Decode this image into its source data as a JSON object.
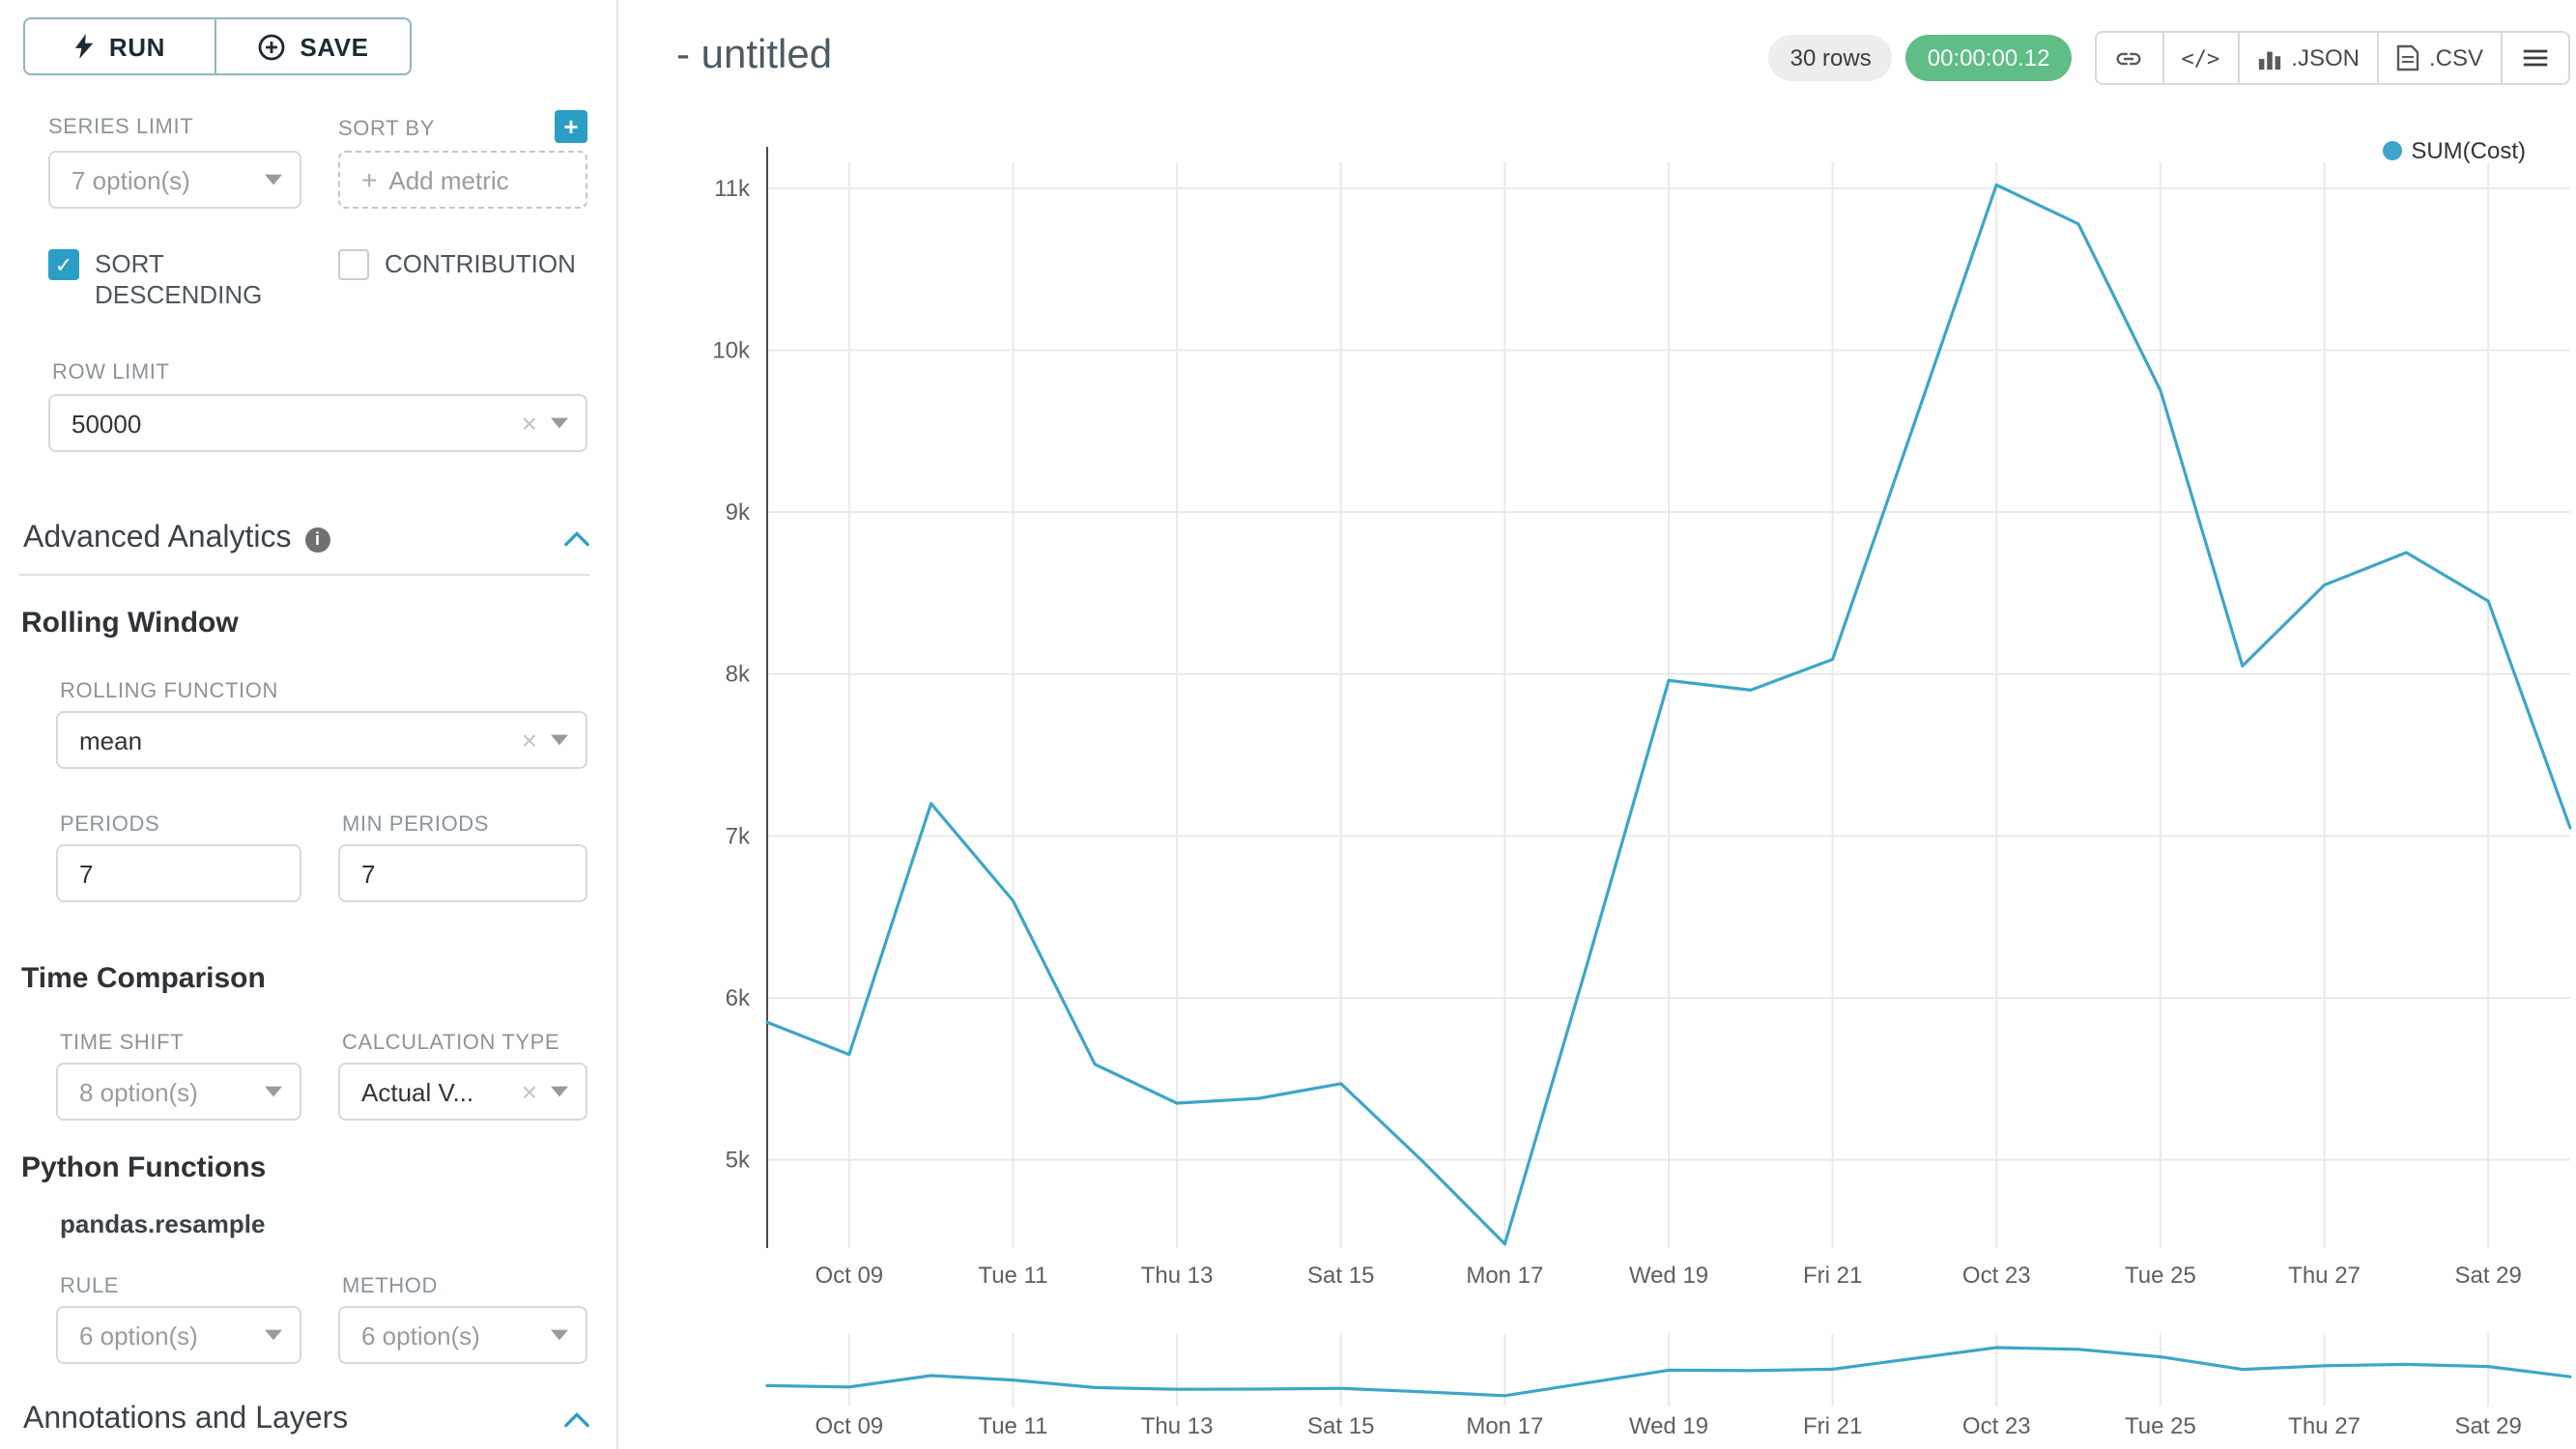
{
  "sidebar": {
    "run_label": "RUN",
    "save_label": "SAVE",
    "series_limit": {
      "label": "SERIES LIMIT",
      "value": "7 option(s)"
    },
    "sort_by": {
      "label": "SORT BY",
      "placeholder": "Add metric"
    },
    "sort_descending_label": "SORT DESCENDING",
    "contribution_label": "CONTRIBUTION",
    "row_limit": {
      "label": "ROW LIMIT",
      "value": "50000"
    },
    "advanced_analytics_title": "Advanced Analytics",
    "rolling_window": {
      "title": "Rolling Window",
      "rolling_function": {
        "label": "ROLLING FUNCTION",
        "value": "mean"
      },
      "periods": {
        "label": "PERIODS",
        "value": "7"
      },
      "min_periods": {
        "label": "MIN PERIODS",
        "value": "7"
      }
    },
    "time_comparison": {
      "title": "Time Comparison",
      "time_shift": {
        "label": "TIME SHIFT",
        "value": "8 option(s)"
      },
      "calculation_type": {
        "label": "CALCULATION TYPE",
        "value": "Actual V..."
      }
    },
    "python_functions": {
      "title": "Python Functions",
      "subtitle": "pandas.resample",
      "rule": {
        "label": "RULE",
        "value": "6 option(s)"
      },
      "method": {
        "label": "METHOD",
        "value": "6 option(s)"
      }
    },
    "annotations_title": "Annotations and Layers"
  },
  "header": {
    "title": "- untitled",
    "rows_badge": "30 rows",
    "timer": "00:00:00.12",
    "code_glyph": "</>",
    "json_label": ".JSON",
    "csv_label": ".CSV"
  },
  "colors": {
    "accent": "#2B9EC6",
    "line": "#3DA5C9",
    "timer_green": "#5FBD85",
    "badge_gray": "#EDEDED",
    "grid": "#E9E9E9"
  },
  "chart_data": {
    "type": "line",
    "title": "",
    "xlabel": "",
    "ylabel": "",
    "legend_position": "top-right",
    "grid": true,
    "x": [
      "Oct 08",
      "Oct 09",
      "Oct 10",
      "Oct 11",
      "Oct 12",
      "Oct 13",
      "Oct 14",
      "Oct 15",
      "Oct 16",
      "Oct 17",
      "Oct 18",
      "Oct 19",
      "Oct 20",
      "Oct 21",
      "Oct 22",
      "Oct 23",
      "Oct 24",
      "Oct 25",
      "Oct 26",
      "Oct 27",
      "Oct 28",
      "Oct 29",
      "Oct 30"
    ],
    "series": [
      {
        "name": "SUM(Cost)",
        "values": [
          5850,
          5650,
          7200,
          6600,
          5590,
          5350,
          5380,
          5470,
          4990,
          4480,
          6200,
          7960,
          7900,
          8090,
          9550,
          11020,
          10780,
          9750,
          8050,
          8550,
          8750,
          8450,
          7050
        ]
      }
    ],
    "x_tick_labels": [
      "Oct 09",
      "Tue 11",
      "Thu 13",
      "Sat 15",
      "Mon 17",
      "Wed 19",
      "Fri 21",
      "Oct 23",
      "Tue 25",
      "Thu 27",
      "Sat 29"
    ],
    "x_tick_indices": [
      1,
      3,
      5,
      7,
      9,
      11,
      13,
      15,
      17,
      19,
      21
    ],
    "y_ticks": [
      5000,
      6000,
      7000,
      8000,
      9000,
      10000,
      11000
    ],
    "y_tick_labels": [
      "5k",
      "6k",
      "7k",
      "8k",
      "9k",
      "10k",
      "11k"
    ],
    "ylim": [
      4455,
      11160
    ],
    "mini_ylim": [
      3000,
      13000
    ],
    "line_color": "#3DA5C9"
  }
}
